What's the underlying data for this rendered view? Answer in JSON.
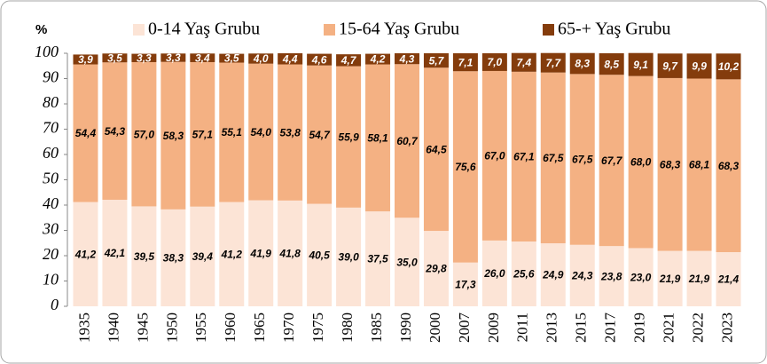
{
  "chart_data": {
    "type": "stacked_bar",
    "y_label": "%",
    "categories": [
      "1935",
      "1940",
      "1945",
      "1950",
      "1955",
      "1960",
      "1965",
      "1970",
      "1975",
      "1980",
      "1985",
      "1990",
      "2000",
      "2007",
      "2009",
      "2011",
      "2013",
      "2015",
      "2017",
      "2019",
      "2021",
      "2022",
      "2023"
    ],
    "series": [
      {
        "name": "0-14 Yaş Grubu",
        "color": "#fce4d6",
        "label_color": "#000000",
        "values": [
          41.2,
          42.1,
          39.5,
          38.3,
          39.4,
          41.2,
          41.9,
          41.8,
          40.5,
          39.0,
          37.5,
          35.0,
          29.8,
          17.3,
          26.0,
          25.6,
          24.9,
          24.3,
          23.8,
          23.0,
          21.9,
          21.9,
          21.4
        ],
        "value_labels": [
          "41,2",
          "42,1",
          "39,5",
          "38,3",
          "39,4",
          "41,2",
          "41,9",
          "41,8",
          "40,5",
          "39,0",
          "37,5",
          "35,0",
          "29,8",
          "17,3",
          "26,0",
          "25,6",
          "24,9",
          "24,3",
          "23,8",
          "23,0",
          "21,9",
          "21,9",
          "21,4"
        ]
      },
      {
        "name": "15-64 Yaş Grubu",
        "color": "#f4b183",
        "label_color": "#000000",
        "values": [
          54.4,
          54.3,
          57.0,
          58.3,
          57.1,
          55.1,
          54.0,
          53.8,
          54.7,
          55.9,
          58.1,
          60.7,
          64.5,
          75.6,
          67.0,
          67.1,
          67.5,
          67.5,
          67.7,
          68.0,
          68.3,
          68.1,
          68.3
        ],
        "value_labels": [
          "54,4",
          "54,3",
          "57,0",
          "58,3",
          "57,1",
          "55,1",
          "54,0",
          "53,8",
          "54,7",
          "55,9",
          "58,1",
          "60,7",
          "64,5",
          "75,6",
          "67,0",
          "67,1",
          "67,5",
          "67,5",
          "67,7",
          "68,0",
          "68,3",
          "68,1",
          "68,3"
        ]
      },
      {
        "name": "65-+ Yaş Grubu",
        "color": "#843c0c",
        "label_color": "#ffffff",
        "values": [
          3.9,
          3.5,
          3.3,
          3.3,
          3.4,
          3.5,
          4.0,
          4.4,
          4.6,
          4.7,
          4.2,
          4.3,
          5.7,
          7.1,
          7.0,
          7.4,
          7.7,
          8.3,
          8.5,
          9.1,
          9.7,
          9.9,
          10.2
        ],
        "value_labels": [
          "3,9",
          "3,5",
          "3,3",
          "3,3",
          "3,4",
          "3,5",
          "4,0",
          "4,4",
          "4,6",
          "4,7",
          "4,2",
          "4,3",
          "5,7",
          "7,1",
          "7,0",
          "7,4",
          "7,7",
          "8,3",
          "8,5",
          "9,1",
          "9,7",
          "9,9",
          "10,2"
        ]
      }
    ],
    "ylim": [
      0,
      100
    ],
    "yticks": [
      0,
      10,
      20,
      30,
      40,
      50,
      60,
      70,
      80,
      90,
      100
    ],
    "grid": false
  }
}
